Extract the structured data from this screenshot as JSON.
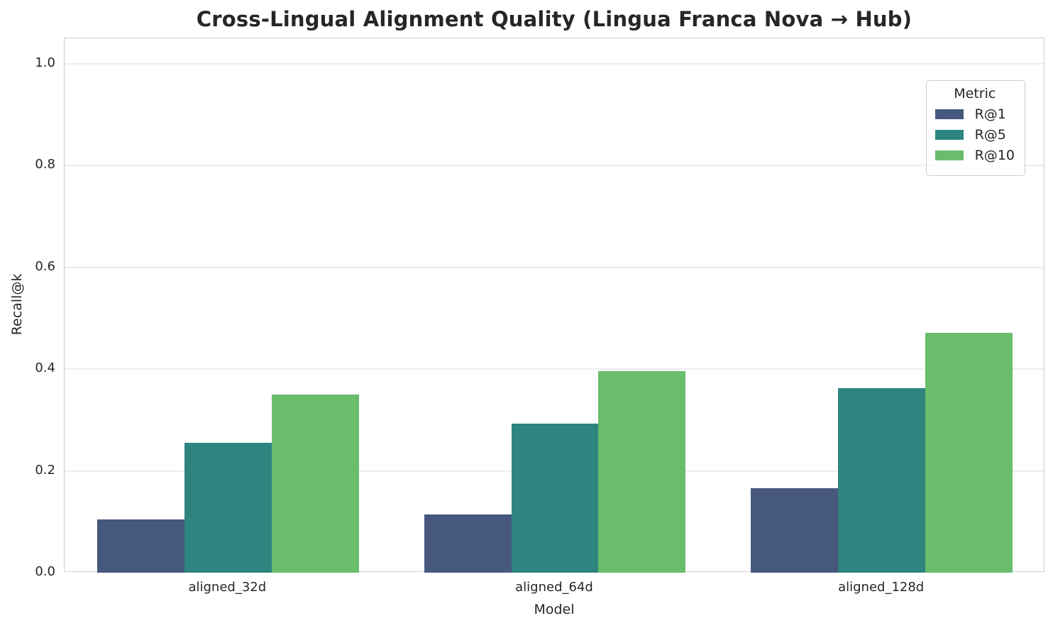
{
  "chart_data": {
    "type": "bar",
    "title": "Cross-Lingual Alignment Quality (Lingua Franca Nova → Hub)",
    "xlabel": "Model",
    "ylabel": "Recall@k",
    "categories": [
      "aligned_32d",
      "aligned_64d",
      "aligned_128d"
    ],
    "series": [
      {
        "name": "R@1",
        "color": "#46587e",
        "values": [
          0.104,
          0.115,
          0.166
        ]
      },
      {
        "name": "R@5",
        "color": "#2e847e",
        "values": [
          0.255,
          0.293,
          0.363
        ]
      },
      {
        "name": "R@10",
        "color": "#69bd6b",
        "values": [
          0.35,
          0.396,
          0.471
        ]
      }
    ],
    "yticks": [
      0.0,
      0.2,
      0.4,
      0.6,
      0.8,
      1.0
    ],
    "ylim": [
      0,
      1.05
    ],
    "grid": true,
    "legend": {
      "title": "Metric",
      "position": "upper right"
    }
  },
  "colors": {
    "text": "#262626",
    "gridline": "#ececec",
    "spine": "#cfcfcf",
    "background": "#ffffff"
  }
}
